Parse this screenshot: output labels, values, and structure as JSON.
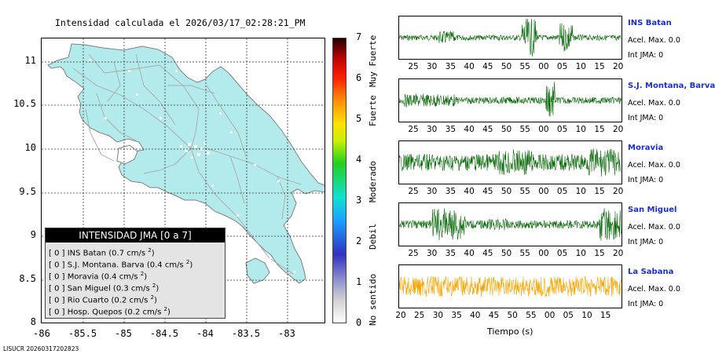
{
  "map": {
    "title": "Intensidad calculada el 2026/03/17_02:28:21_PM",
    "yticks": [
      "11",
      "10.5",
      "10",
      "9.5",
      "9",
      "8.5",
      "8"
    ],
    "xticks": [
      "-86",
      "-85.5",
      "-85",
      "-84.5",
      "-84",
      "-83.5",
      "-83"
    ],
    "land_color": "#b3ebec",
    "grid_style": "dotted"
  },
  "legend": {
    "title": "INTENSIDAD JMA [0 a 7]",
    "rows": [
      {
        "value": "[ 0 ]",
        "station": "INS Batan",
        "accel": "(0.7 cm/s",
        "sup": "2",
        "close": ")"
      },
      {
        "value": "[ 0 ]",
        "station": "S.J. Montana. Barva",
        "accel": "(0.4 cm/s",
        "sup": "2",
        "close": ")"
      },
      {
        "value": "[ 0 ]",
        "station": "Moravia",
        "accel": "(0.4 cm/s",
        "sup": "2",
        "close": ")"
      },
      {
        "value": "[ 0 ]",
        "station": "San Miguel",
        "accel": "(0.3 cm/s",
        "sup": "2",
        "close": ")"
      },
      {
        "value": "[ 0 ]",
        "station": "Rio Cuarto",
        "accel": "(0.2 cm/s",
        "sup": "2",
        "close": ")"
      },
      {
        "value": "[ 0 ]",
        "station": "Hosp. Quepos",
        "accel": "(0.2 cm/s",
        "sup": "2",
        "close": ")"
      }
    ]
  },
  "colorbar": {
    "ticks": [
      "7",
      "6",
      "5",
      "4",
      "3",
      "2",
      "1",
      "0"
    ],
    "categories": [
      "Muy Fuerte",
      "Fuerte",
      "Moderado",
      "Debil",
      "No sentido"
    ]
  },
  "traces": [
    {
      "name": "INS Batan",
      "accel": "Acel. Max. 0.0",
      "jma": "Int JMA: 0",
      "color": "#0a6b0a",
      "ticks": [
        "25",
        "30",
        "35",
        "40",
        "45",
        "50",
        "55",
        "00",
        "05",
        "10",
        "15",
        "20"
      ]
    },
    {
      "name": "S.J. Montana, Barva",
      "accel": "Acel. Max. 0.0",
      "jma": "Int JMA: 0",
      "color": "#0a6b0a",
      "ticks": [
        "25",
        "30",
        "35",
        "40",
        "45",
        "50",
        "55",
        "00",
        "05",
        "10",
        "15",
        "20"
      ]
    },
    {
      "name": "Moravia",
      "accel": "Acel. Max. 0.0",
      "jma": "Int JMA: 0",
      "color": "#0a6b0a",
      "ticks": [
        "25",
        "30",
        "35",
        "40",
        "45",
        "50",
        "55",
        "00",
        "05",
        "10",
        "15",
        "20"
      ]
    },
    {
      "name": "San Miguel",
      "accel": "Acel. Max. 0.0",
      "jma": "Int JMA: 0",
      "color": "#0a6b0a",
      "ticks": [
        "25",
        "30",
        "35",
        "40",
        "45",
        "50",
        "55",
        "00",
        "05",
        "10",
        "15",
        "20"
      ]
    },
    {
      "name": "La Sabana",
      "accel": "Acel. Max. 0.0",
      "jma": "Int JMA: 0",
      "color": "#f5a500",
      "ticks": [
        "20",
        "25",
        "30",
        "35",
        "40",
        "45",
        "50",
        "55",
        "00",
        "05",
        "10",
        "15"
      ]
    }
  ],
  "xlabel": "Tiempo (s)",
  "footer": "LISUCR 20260317202823"
}
